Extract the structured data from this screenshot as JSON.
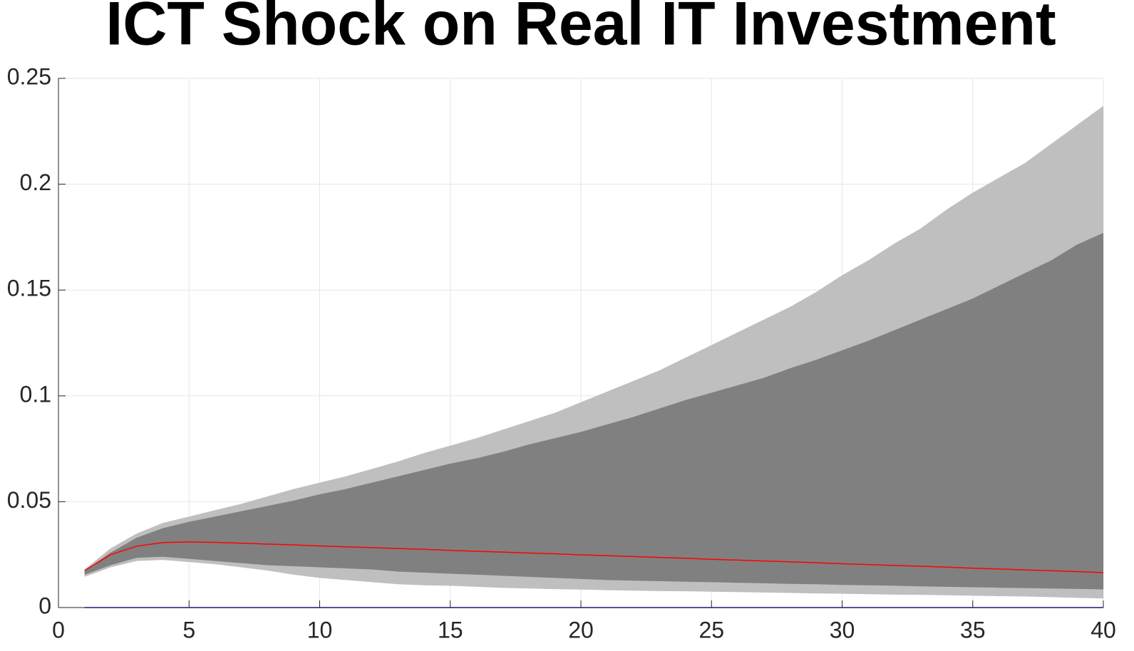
{
  "chart_data": {
    "type": "line",
    "title": "ICT Shock on Real IT Investment",
    "x": [
      1,
      2,
      3,
      4,
      5,
      6,
      7,
      8,
      9,
      10,
      11,
      12,
      13,
      14,
      15,
      16,
      17,
      18,
      19,
      20,
      21,
      22,
      23,
      24,
      25,
      26,
      27,
      28,
      29,
      30,
      31,
      32,
      33,
      34,
      35,
      36,
      37,
      38,
      39,
      40
    ],
    "bands": [
      {
        "color": "#bfbfbf",
        "upper": [
          0.018,
          0.028,
          0.035,
          0.04,
          0.043,
          0.046,
          0.049,
          0.0525,
          0.056,
          0.059,
          0.062,
          0.0655,
          0.069,
          0.073,
          0.0765,
          0.08,
          0.084,
          0.088,
          0.092,
          0.097,
          0.102,
          0.107,
          0.112,
          0.118,
          0.124,
          0.13,
          0.136,
          0.142,
          0.149,
          0.157,
          0.164,
          0.172,
          0.179,
          0.188,
          0.196,
          0.203,
          0.21,
          0.219,
          0.228,
          0.237
        ],
        "lower": [
          0.0145,
          0.019,
          0.022,
          0.0225,
          0.0215,
          0.0205,
          0.019,
          0.0175,
          0.0155,
          0.014,
          0.013,
          0.012,
          0.011,
          0.0105,
          0.0103,
          0.0098,
          0.0093,
          0.009,
          0.0087,
          0.0085,
          0.0082,
          0.008,
          0.0078,
          0.0077,
          0.0075,
          0.0073,
          0.0071,
          0.0069,
          0.0067,
          0.0065,
          0.0063,
          0.0061,
          0.006,
          0.0058,
          0.0056,
          0.0054,
          0.0052,
          0.0049,
          0.0046,
          0.0043
        ]
      },
      {
        "color": "#808080",
        "upper": [
          0.0175,
          0.026,
          0.033,
          0.0375,
          0.0405,
          0.043,
          0.0455,
          0.048,
          0.0505,
          0.0535,
          0.056,
          0.059,
          0.062,
          0.065,
          0.068,
          0.0705,
          0.0735,
          0.077,
          0.08,
          0.083,
          0.0865,
          0.09,
          0.094,
          0.098,
          0.1015,
          0.105,
          0.1085,
          0.113,
          0.117,
          0.1215,
          0.126,
          0.131,
          0.136,
          0.141,
          0.146,
          0.152,
          0.158,
          0.164,
          0.1715,
          0.177
        ],
        "lower": [
          0.0155,
          0.02,
          0.0235,
          0.024,
          0.023,
          0.022,
          0.021,
          0.02,
          0.0195,
          0.019,
          0.0185,
          0.018,
          0.017,
          0.0165,
          0.016,
          0.0155,
          0.015,
          0.0145,
          0.014,
          0.0135,
          0.013,
          0.0127,
          0.0125,
          0.0122,
          0.012,
          0.0117,
          0.0115,
          0.0112,
          0.011,
          0.0107,
          0.0105,
          0.0103,
          0.01,
          0.0098,
          0.0096,
          0.0094,
          0.0092,
          0.009,
          0.0088,
          0.0086
        ]
      }
    ],
    "series": [
      {
        "color": "#0000ff",
        "values": [
          0,
          0,
          0,
          0,
          0,
          0,
          0,
          0,
          0,
          0,
          0,
          0,
          0,
          0,
          0,
          0,
          0,
          0,
          0,
          0,
          0,
          0,
          0,
          0,
          0,
          0,
          0,
          0,
          0,
          0,
          0,
          0,
          0,
          0,
          0,
          0,
          0,
          0,
          0,
          0
        ]
      },
      {
        "color": "#ff0000",
        "values": [
          0.0175,
          0.025,
          0.029,
          0.0307,
          0.031,
          0.0308,
          0.0304,
          0.03,
          0.0296,
          0.0291,
          0.0287,
          0.0283,
          0.0279,
          0.0275,
          0.027,
          0.0266,
          0.0262,
          0.0258,
          0.0254,
          0.0249,
          0.0245,
          0.0241,
          0.0237,
          0.0233,
          0.0228,
          0.0224,
          0.022,
          0.0216,
          0.0212,
          0.0207,
          0.0203,
          0.0199,
          0.0195,
          0.0191,
          0.0186,
          0.0182,
          0.0178,
          0.0174,
          0.017,
          0.0165
        ]
      }
    ],
    "xlim": [
      0,
      40
    ],
    "xticks": [
      0,
      5,
      10,
      15,
      20,
      25,
      30,
      35,
      40
    ],
    "ylim": [
      0,
      0.25
    ],
    "yticks": [
      0,
      0.05,
      0.1,
      0.15,
      0.2,
      0.25
    ],
    "grid": true
  }
}
